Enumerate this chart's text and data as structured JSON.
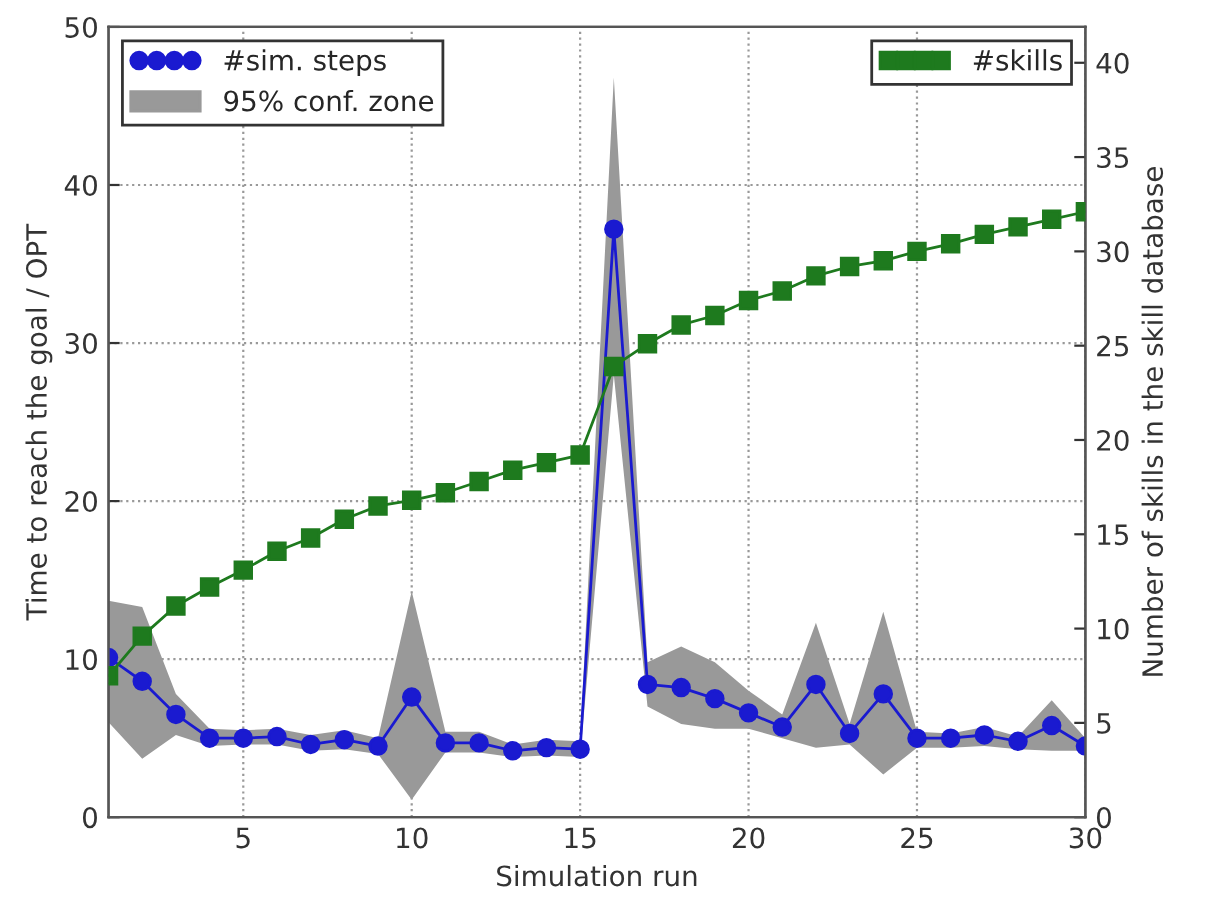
{
  "chart_data": {
    "type": "line",
    "xlabel": "Simulation run",
    "ylabel": "Time to reach the goal / OPT",
    "y2label": "Number of skills in the skill database",
    "annotations": [
      "95% conf. zone"
    ],
    "x": [
      1,
      2,
      3,
      4,
      5,
      6,
      7,
      8,
      9,
      10,
      11,
      12,
      13,
      14,
      15,
      16,
      17,
      18,
      19,
      20,
      21,
      22,
      23,
      24,
      25,
      26,
      27,
      28,
      29,
      30
    ],
    "xlim": [
      1,
      30
    ],
    "xticks": [
      5,
      10,
      15,
      20,
      25,
      30
    ],
    "ylim": [
      0,
      50
    ],
    "yticks": [
      0,
      10,
      20,
      30,
      40,
      50
    ],
    "y2lim": [
      0,
      41.9
    ],
    "y2ticks": [
      0,
      5,
      10,
      15,
      20,
      25,
      30,
      35,
      40
    ],
    "grid": true,
    "legend": "top",
    "series": [
      {
        "name": "#sim. steps",
        "color": "#1a1ad0",
        "marker": "circle",
        "values": [
          10.1,
          8.6,
          6.5,
          5.0,
          5.0,
          5.1,
          4.6,
          4.9,
          4.5,
          7.6,
          4.7,
          4.7,
          4.2,
          4.4,
          4.3,
          37.2,
          8.4,
          8.2,
          7.5,
          6.6,
          5.7,
          8.4,
          5.3,
          7.8,
          5.0,
          5.0,
          5.2,
          4.8,
          5.8,
          4.5
        ],
        "lower": [
          6.0,
          3.7,
          5.2,
          4.5,
          4.6,
          4.6,
          4.2,
          4.3,
          4.0,
          1.1,
          4.1,
          4.1,
          3.8,
          3.9,
          3.8,
          28.0,
          7.0,
          5.9,
          5.6,
          5.6,
          5.0,
          4.4,
          4.6,
          2.7,
          4.4,
          4.4,
          4.5,
          4.3,
          4.2,
          4.2
        ],
        "upper": [
          13.7,
          13.3,
          7.8,
          5.6,
          5.5,
          5.6,
          5.2,
          5.5,
          5.0,
          14.3,
          5.4,
          5.4,
          4.6,
          4.9,
          4.8,
          46.8,
          9.8,
          10.8,
          9.8,
          8.0,
          6.5,
          12.3,
          5.9,
          13.0,
          5.4,
          5.3,
          5.7,
          5.1,
          7.4,
          5.0
        ]
      },
      {
        "name": "#skills",
        "color": "#1e7a1e",
        "marker": "square",
        "axis": "y2",
        "values": [
          7.5,
          9.6,
          11.2,
          12.2,
          13.1,
          14.1,
          14.8,
          15.8,
          16.5,
          16.8,
          17.2,
          17.8,
          18.4,
          18.8,
          19.2,
          23.9,
          25.1,
          26.1,
          26.6,
          27.4,
          27.9,
          28.7,
          29.2,
          29.5,
          30.0,
          30.4,
          30.9,
          31.3,
          31.7,
          32.1
        ]
      }
    ]
  }
}
